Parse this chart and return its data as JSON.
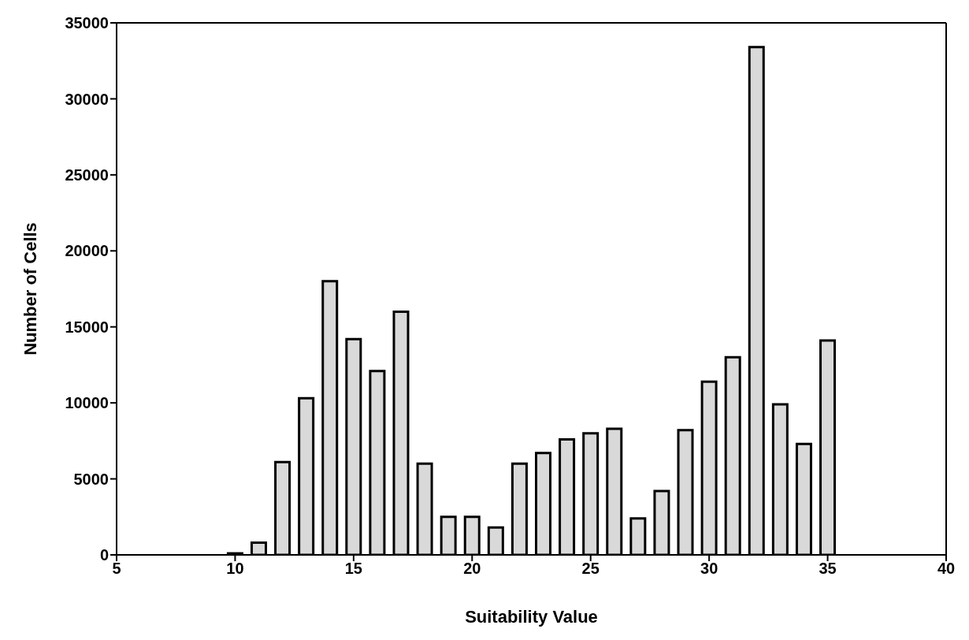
{
  "chart_data": {
    "type": "bar",
    "xlabel": "Suitability Value",
    "ylabel": "Number of Cells",
    "x": [
      10,
      11,
      12,
      13,
      14,
      15,
      16,
      17,
      18,
      19,
      20,
      21,
      22,
      23,
      24,
      25,
      26,
      27,
      28,
      29,
      30,
      31,
      32,
      33,
      34,
      35
    ],
    "values": [
      100,
      800,
      6100,
      10300,
      18000,
      14200,
      12100,
      16000,
      6000,
      2500,
      2500,
      1800,
      6000,
      6700,
      7600,
      8000,
      8300,
      2400,
      4200,
      8200,
      11400,
      13000,
      33400,
      9900,
      7300,
      14100
    ],
    "color": "#d9d9d9",
    "xlim": [
      5,
      40
    ],
    "xticks": [
      5,
      10,
      15,
      20,
      25,
      30,
      35,
      40
    ],
    "ylim": [
      0,
      35000
    ],
    "yticks": [
      0,
      5000,
      10000,
      15000,
      20000,
      25000,
      30000,
      35000
    ],
    "grid": false,
    "legend": false
  }
}
